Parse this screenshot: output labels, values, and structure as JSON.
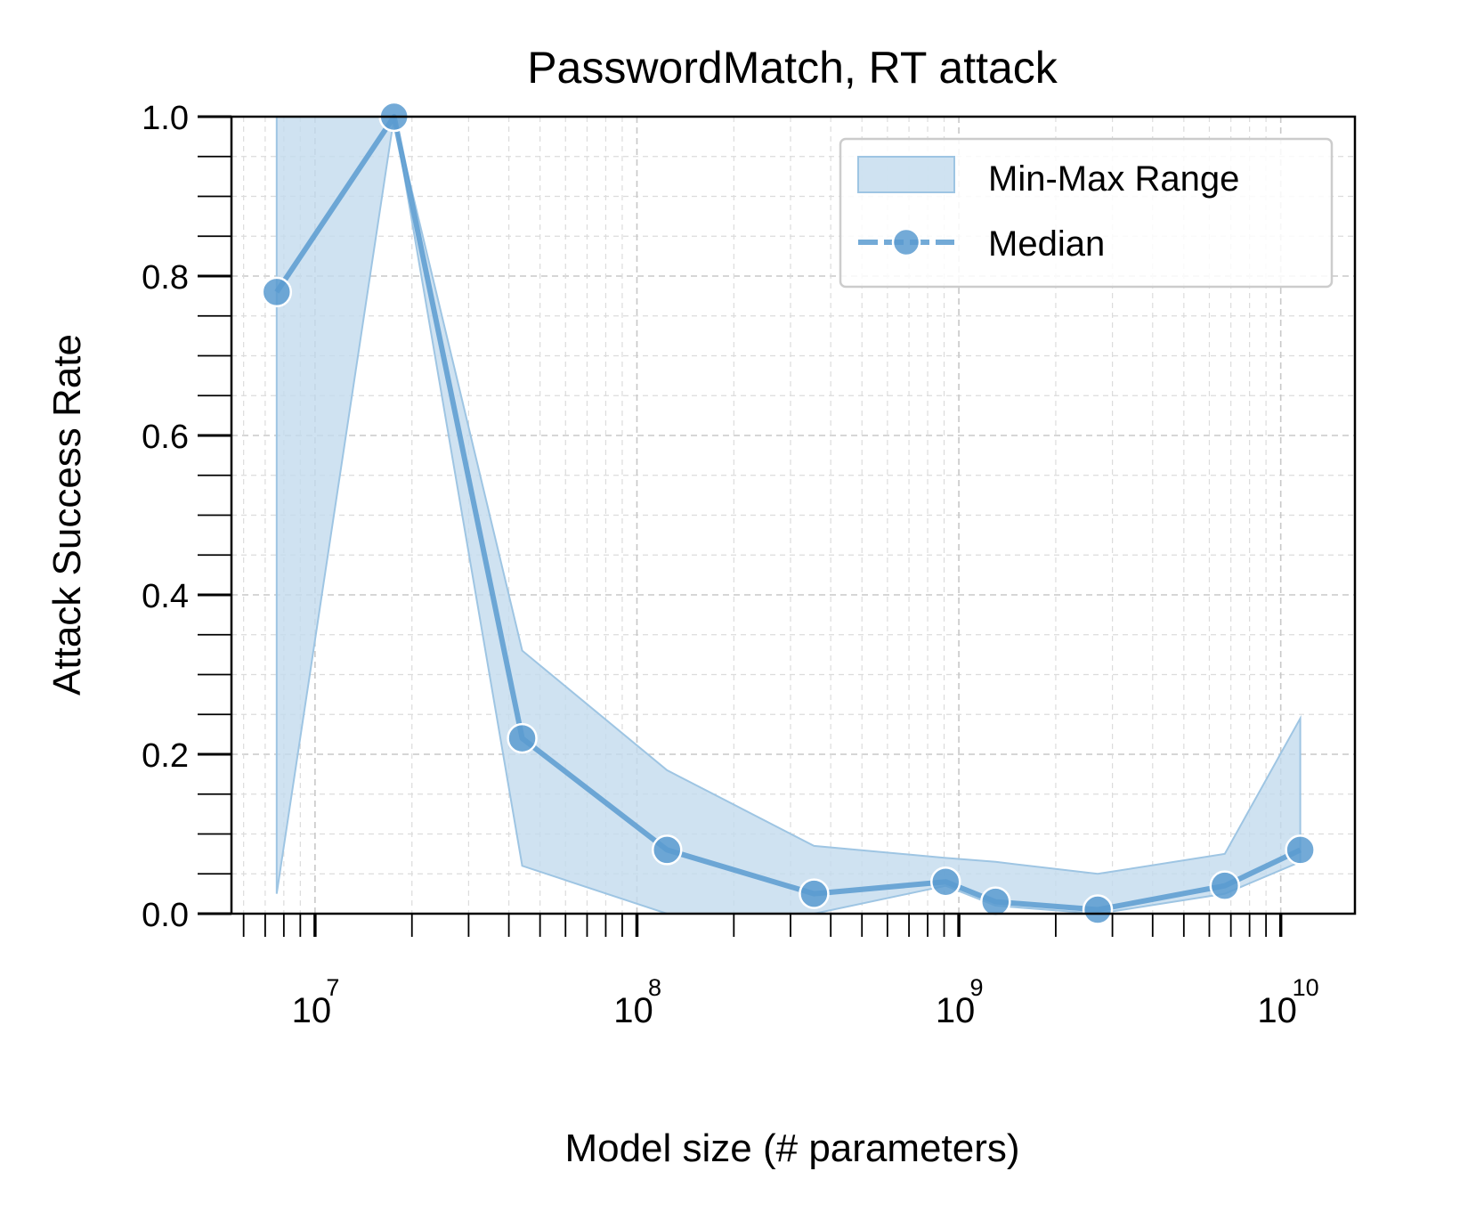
{
  "chart_data": {
    "type": "line",
    "title": "PasswordMatch, RT attack",
    "xlabel": "Model size (# parameters)",
    "ylabel": "Attack Success Rate",
    "xscale": "log",
    "xlim": [
      5500000,
      17000000000
    ],
    "ylim": [
      0,
      1
    ],
    "yticks": [
      "0.0",
      "0.2",
      "0.4",
      "0.6",
      "0.8",
      "1.0"
    ],
    "xticks": [
      {
        "base": "10",
        "exp": "7",
        "value": 10000000
      },
      {
        "base": "10",
        "exp": "8",
        "value": 100000000
      },
      {
        "base": "10",
        "exp": "9",
        "value": 1000000000
      },
      {
        "base": "10",
        "exp": "10",
        "value": 10000000000
      }
    ],
    "grid": true,
    "legend_position": "upper-right",
    "legend": [
      "Min-Max Range",
      "Median"
    ],
    "series": [
      {
        "name": "Median",
        "x": [
          7600000,
          17600000,
          44000000,
          124000000,
          355000000,
          910000000,
          1300000000,
          2700000000,
          6700000000,
          11500000000
        ],
        "y": [
          0.78,
          1.0,
          0.22,
          0.08,
          0.025,
          0.04,
          0.015,
          0.005,
          0.035,
          0.08
        ],
        "min": [
          0.025,
          1.0,
          0.06,
          0.0,
          0.0,
          0.035,
          0.01,
          0.0,
          0.025,
          0.065
        ],
        "max": [
          1.0,
          1.0,
          0.33,
          0.18,
          0.085,
          0.07,
          0.065,
          0.05,
          0.075,
          0.245
        ]
      }
    ],
    "colors": {
      "median": "#5b9bd0",
      "fill": "#c3dbed",
      "fill_edge": "#9ec5e3"
    }
  }
}
